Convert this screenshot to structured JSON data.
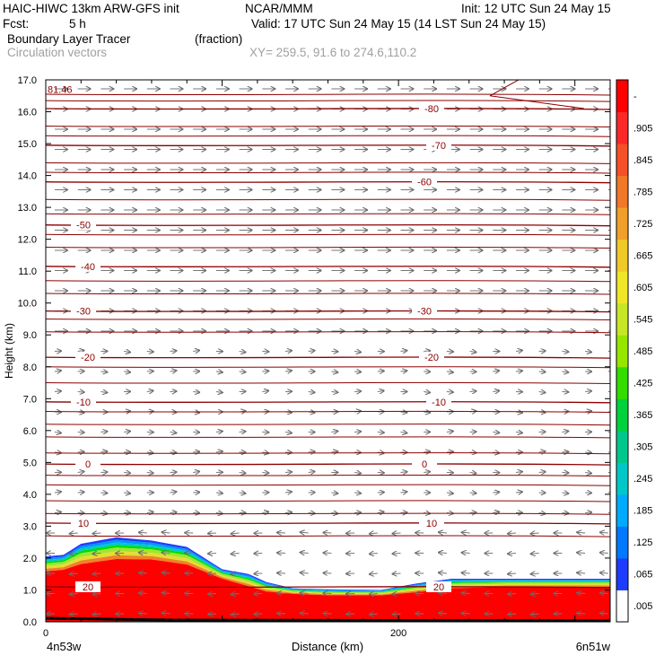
{
  "header": {
    "model": "HAIC-HIWC 13km ARW-GFS init",
    "org": "NCAR/MMM",
    "init": "Init: 12 UTC Sun 24 May 15",
    "fcst_label": "Fcst:",
    "fcst_value": "5 h",
    "valid": "Valid: 17 UTC Sun 24 May 15 (14 LST Sun 24 May 15)",
    "field1": "Boundary Layer Tracer",
    "field1_units": "(fraction)",
    "field2": "Circulation vectors",
    "xy": "XY= 259.5, 91.6 to 274.6,110.2"
  },
  "chart_data": {
    "type": "heatmap",
    "xlabel": "Distance (km)",
    "ylabel": "Height (km)",
    "x_left_label": "4n53w",
    "x_right_label": "6n51w",
    "xlim": [
      0,
      320
    ],
    "ylim": [
      0,
      17
    ],
    "x_ticks": [
      0,
      200
    ],
    "y_ticks": [
      "0.0",
      "1.0",
      "2.0",
      "3.0",
      "4.0",
      "5.0",
      "6.0",
      "7.0",
      "8.0",
      "9.0",
      "10.0",
      "11.0",
      "12.0",
      "13.0",
      "14.0",
      "15.0",
      "16.0",
      "17.0"
    ],
    "colorbar": {
      "labels": [
        ".005",
        ".065",
        ".125",
        ".185",
        ".245",
        ".305",
        ".365",
        ".425",
        ".485",
        ".545",
        ".605",
        ".665",
        ".725",
        ".785",
        ".845",
        ".905",
        "-"
      ],
      "colors": [
        "#ffffff",
        "#1e3cff",
        "#0096ff",
        "#00c8c8",
        "#00d28c",
        "#00dc00",
        "#a0e632",
        "#e6dc32",
        "#e6af2d",
        "#f08228",
        "#fa3c3c",
        "#ff0000"
      ]
    },
    "tracer_top_km": {
      "x": [
        0,
        10,
        20,
        40,
        60,
        80,
        100,
        115,
        125,
        140,
        160,
        190,
        210,
        230,
        260,
        290,
        320
      ],
      "blue_top": [
        2.05,
        2.1,
        2.45,
        2.65,
        2.55,
        2.35,
        1.65,
        1.5,
        1.25,
        1.05,
        1.02,
        1.0,
        1.2,
        1.35,
        1.35,
        1.35,
        1.35
      ],
      "red_top": [
        1.5,
        1.55,
        1.7,
        1.85,
        1.85,
        1.7,
        1.3,
        1.05,
        0.9,
        0.85,
        0.8,
        0.8,
        0.88,
        1.0,
        1.05,
        1.05,
        1.05
      ]
    },
    "temperature_contours": [
      {
        "label": "81.46",
        "y": 16.7
      },
      {
        "label": "-80",
        "y": 16.1
      },
      {
        "label": "-70",
        "y": 14.95
      },
      {
        "label": "-60",
        "y": 13.8
      },
      {
        "label": "-50",
        "y": 12.45
      },
      {
        "label": "-40",
        "y": 11.15
      },
      {
        "label": "-30",
        "y": 9.75
      },
      {
        "label": "-20",
        "y": 8.3
      },
      {
        "label": "-10",
        "y": 6.9
      },
      {
        "label": "0",
        "y": 4.95
      },
      {
        "label": "10",
        "y": 3.1
      },
      {
        "label": "20",
        "y": 1.1
      }
    ]
  }
}
